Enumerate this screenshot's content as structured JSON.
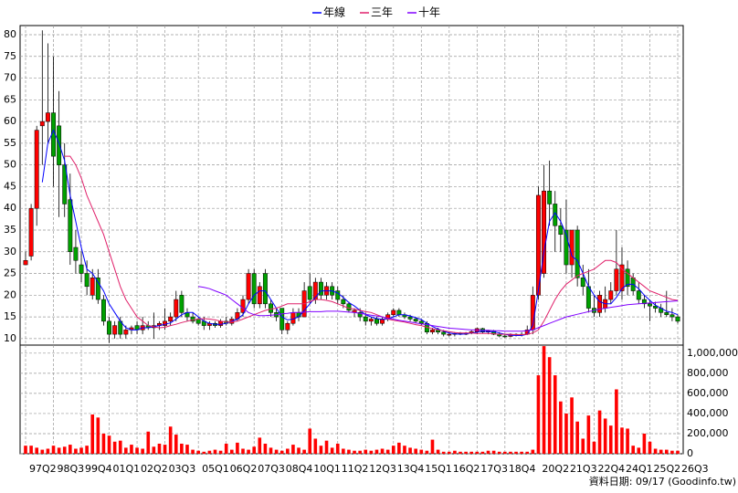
{
  "chart_data": {
    "type": "candlestick",
    "categories": [
      "97Q2",
      null,
      null,
      null,
      null,
      "98Q3",
      null,
      null,
      null,
      null,
      "99Q4",
      null,
      null,
      null,
      null,
      "01Q1",
      null,
      null,
      null,
      null,
      "02Q2",
      null,
      null,
      null,
      null,
      "03Q3",
      null,
      null,
      null,
      null,
      null,
      "05Q1",
      null,
      null,
      null,
      null,
      "06Q2",
      null,
      null,
      null,
      null,
      "07Q3",
      null,
      null,
      null,
      null,
      "08Q4",
      null,
      null,
      null,
      null,
      "10Q1",
      null,
      null,
      null,
      null,
      "11Q2",
      null,
      null,
      null,
      null,
      "12Q3",
      null,
      null,
      null,
      null,
      "13Q4",
      null,
      null,
      null,
      null,
      "15Q1",
      null,
      null,
      null,
      null,
      "16Q2",
      null,
      null,
      null,
      null,
      "17Q3",
      null,
      null,
      null,
      null,
      "18Q4",
      null,
      null,
      null,
      null,
      null,
      "20Q2",
      null,
      null,
      null,
      null,
      "21Q3",
      null,
      null,
      null,
      null,
      "22Q4",
      null,
      null,
      null,
      null,
      "24Q1",
      null,
      null,
      null,
      null,
      "25Q2",
      null,
      null,
      null,
      null,
      "26Q3"
    ],
    "open": [
      27,
      29,
      40,
      59,
      60,
      62,
      59,
      50,
      42,
      31,
      27,
      25,
      20,
      24,
      19,
      14,
      11,
      14,
      11,
      12,
      13,
      12,
      13,
      12.5,
      13,
      13,
      14,
      15,
      20,
      16,
      15,
      14.5,
      14,
      13,
      13.5,
      13,
      14,
      13.5,
      14.5,
      16,
      19,
      25,
      18,
      25,
      18,
      16,
      17,
      12,
      13.5,
      16,
      15,
      22,
      19,
      23,
      20,
      22,
      21,
      19,
      18,
      16,
      16,
      15,
      14,
      14.5,
      13.5,
      14.5,
      15.5,
      16.5,
      15.5,
      15,
      14.5,
      14,
      13.5,
      11.5,
      12,
      11.5,
      11,
      11,
      11.2,
      11,
      11.3,
      11.6,
      12.3,
      11.5,
      11.8,
      11,
      10.6,
      10.5,
      11,
      10.8,
      11,
      12,
      20,
      25,
      44,
      41,
      36,
      35,
      27,
      35,
      24,
      22,
      17,
      16,
      17,
      19,
      21,
      21,
      26,
      24,
      21,
      19,
      18,
      17.5,
      17,
      16,
      15.5,
      15
    ],
    "high": [
      30,
      41,
      59,
      81,
      78,
      75,
      67,
      55,
      48,
      35,
      30,
      28,
      26,
      26,
      20,
      15,
      14,
      15,
      13,
      13,
      14,
      15,
      14,
      16,
      14,
      17,
      16,
      21,
      21,
      17,
      16,
      15,
      15,
      14,
      14,
      14.5,
      15,
      15,
      17,
      20,
      26,
      26,
      23,
      26,
      19,
      17,
      17,
      14,
      17,
      17,
      23,
      25,
      24,
      24,
      23,
      23,
      22,
      20,
      18.5,
      17,
      17,
      16,
      15,
      15,
      15,
      16,
      17,
      17,
      16,
      15.5,
      15,
      14.5,
      14,
      12.5,
      12.5,
      12,
      11.5,
      11.5,
      11.5,
      11.5,
      12,
      12.5,
      12.5,
      12,
      12,
      11.5,
      11,
      11.2,
      11.2,
      11.5,
      13,
      22,
      45,
      50,
      51,
      44,
      40,
      42,
      35,
      36,
      27,
      26,
      20,
      21,
      22,
      23,
      35,
      31,
      28,
      25,
      23,
      20,
      19,
      18.5,
      18,
      21,
      17,
      15.5
    ],
    "low": [
      27,
      28,
      36,
      50,
      55,
      45,
      38,
      38,
      27,
      25,
      23,
      20,
      19,
      18,
      13,
      9,
      10,
      10,
      10,
      11,
      11,
      11,
      12,
      10,
      12,
      12,
      13,
      14,
      15,
      14,
      13.5,
      13,
      12,
      12,
      12.5,
      12.5,
      13,
      13,
      14,
      15,
      18,
      17,
      17,
      17,
      15,
      14,
      11,
      11,
      13,
      14,
      15,
      18,
      18,
      19,
      19,
      19,
      18,
      17,
      16,
      15,
      14,
      13,
      13,
      13,
      13,
      14,
      15,
      15,
      14.5,
      14,
      13.5,
      13,
      11,
      11,
      11,
      10.5,
      10.5,
      10.5,
      10.8,
      10.8,
      11,
      11,
      11.2,
      11,
      10.8,
      10.3,
      10.2,
      10.3,
      10.5,
      10.5,
      10.8,
      11,
      19,
      24,
      36,
      30,
      30,
      25,
      24,
      22,
      20,
      16,
      15,
      15,
      16,
      18,
      20,
      19,
      20,
      20,
      18,
      17,
      14,
      16,
      15,
      15,
      14,
      13.5
    ],
    "close": [
      28,
      40,
      58,
      60,
      62,
      52,
      50,
      41,
      30,
      28,
      25,
      22,
      24,
      19,
      14,
      11,
      13,
      11,
      12,
      12.5,
      12,
      13,
      12.5,
      13,
      13.5,
      14,
      15,
      19,
      16,
      15,
      14,
      13.5,
      13,
      13.5,
      13,
      14,
      13.5,
      14.5,
      16,
      19,
      25,
      18,
      22,
      18,
      16,
      15,
      12,
      13.5,
      16,
      15,
      21,
      19,
      23,
      20,
      22,
      20,
      19,
      18,
      16.5,
      16.5,
      15,
      14,
      14.5,
      13.5,
      14.5,
      15.5,
      16.5,
      15.5,
      15,
      14.5,
      14,
      13.5,
      11.5,
      12,
      11.5,
      11,
      11,
      11.2,
      11,
      11.3,
      11.6,
      12.3,
      11.5,
      11.8,
      11,
      10.6,
      10.5,
      11,
      10.8,
      11,
      12,
      20,
      43,
      44,
      41,
      36,
      34,
      27,
      35,
      24,
      22,
      17,
      16,
      20,
      19,
      21,
      26,
      27,
      22,
      21,
      19,
      18,
      17.5,
      17,
      16,
      15.5,
      15,
      14
    ],
    "up_color": "#ff0000",
    "down_color": "#00a000",
    "ylim": [
      8.5,
      82.1
    ],
    "yticks": [
      10,
      15,
      20,
      25,
      30,
      35,
      40,
      45,
      50,
      55,
      60,
      65,
      70,
      75,
      80
    ],
    "grid": true,
    "series": [
      {
        "name": "年線",
        "color": "#0000ff",
        "values": [
          null,
          null,
          null,
          46,
          55,
          58,
          55,
          51,
          43,
          37,
          31,
          26,
          25,
          23,
          21,
          18,
          16,
          14,
          12.5,
          12,
          12,
          12.5,
          12.5,
          12.8,
          13,
          13.3,
          13.6,
          14.5,
          15.5,
          16,
          16,
          15,
          14,
          13.5,
          13.3,
          13.3,
          13.5,
          14,
          14.5,
          15.5,
          18,
          20,
          21,
          21,
          19,
          17,
          15,
          14.3,
          14.5,
          15,
          16.5,
          18,
          19.5,
          21,
          21,
          21,
          20.5,
          19.5,
          18.3,
          17.5,
          16.5,
          15.5,
          15,
          14.6,
          14.4,
          14.5,
          15,
          15.5,
          15.5,
          15.2,
          14.8,
          14.4,
          13.5,
          12.8,
          12.2,
          11.7,
          11.3,
          11.1,
          11,
          11.1,
          11.3,
          11.5,
          11.7,
          11.6,
          11.6,
          11.3,
          11,
          10.8,
          10.7,
          10.7,
          11,
          13,
          21,
          30,
          37,
          39,
          37,
          34,
          29,
          28,
          25,
          22,
          20,
          18.5,
          18,
          18,
          19.5,
          21.5,
          22.5,
          22.5,
          21.5,
          20,
          18.8,
          17.7,
          17,
          16.3,
          16,
          15.5
        ]
      },
      {
        "name": "三年",
        "color": "#e0206a",
        "values": [
          null,
          null,
          null,
          null,
          null,
          null,
          null,
          52,
          52,
          50,
          47,
          43,
          40,
          37,
          34,
          30,
          26,
          22,
          19,
          17,
          15,
          14,
          13,
          12.7,
          12.5,
          12.6,
          13,
          13.3,
          13.7,
          14,
          14.3,
          14.5,
          14.6,
          14.5,
          14.3,
          14,
          13.8,
          13.8,
          14,
          14.5,
          15,
          15.5,
          16,
          16.5,
          16.8,
          17,
          17.5,
          18,
          18,
          18,
          18,
          18.5,
          19,
          19,
          18.8,
          18.5,
          18,
          17.5,
          17,
          16.8,
          16.5,
          16.2,
          16,
          15.5,
          15,
          14.5,
          14.2,
          14,
          13.8,
          13.5,
          13.2,
          13,
          12.6,
          12.3,
          12,
          11.8,
          11.6,
          11.4,
          11.3,
          11.3,
          11.3,
          11.2,
          11.2,
          11.2,
          11.1,
          11,
          11,
          11,
          10.9,
          10.9,
          11,
          11.3,
          12,
          14,
          16.5,
          19,
          21,
          22.5,
          23.5,
          24.5,
          25,
          25.5,
          26,
          27,
          28,
          28,
          27.5,
          26,
          25,
          24,
          23,
          22,
          21,
          20.5,
          20,
          19.5,
          19,
          18.8
        ]
      },
      {
        "name": "十年",
        "color": "#8000ff",
        "values": [
          null,
          null,
          null,
          null,
          null,
          null,
          null,
          null,
          null,
          null,
          null,
          null,
          null,
          null,
          null,
          null,
          null,
          null,
          null,
          null,
          null,
          null,
          null,
          null,
          null,
          null,
          null,
          null,
          null,
          null,
          null,
          22,
          21.8,
          21.5,
          21,
          20.5,
          20,
          19,
          18,
          17,
          16,
          15.5,
          15.3,
          15.3,
          15.4,
          15.5,
          15.7,
          15.8,
          16,
          16,
          16.1,
          16.2,
          16.2,
          16.2,
          16.3,
          16.3,
          16.3,
          16.2,
          16.1,
          16,
          15.8,
          15.6,
          15.4,
          15.2,
          15,
          14.7,
          14.5,
          14.2,
          14,
          13.8,
          13.6,
          13.4,
          13.2,
          13,
          12.8,
          12.6,
          12.4,
          12.3,
          12.2,
          12.1,
          12,
          12,
          11.9,
          11.9,
          11.8,
          11.8,
          11.7,
          11.7,
          11.7,
          11.7,
          11.8,
          12,
          12.5,
          13,
          13.5,
          14,
          14.5,
          15,
          15.3,
          15.6,
          15.9,
          16.2,
          16.5,
          16.8,
          17,
          17.2,
          17.4,
          17.6,
          17.8,
          17.9,
          18,
          18.1,
          18.2,
          18.3,
          18.4,
          18.5,
          18.6,
          18.7
        ]
      }
    ],
    "volume": {
      "color": "#ff0000",
      "ylim": [
        0,
        1080000
      ],
      "yticks": [
        0,
        {
          "value": 200000,
          "label": "200,000"
        },
        {
          "value": 400000,
          "label": "400,000"
        },
        {
          "value": 600000,
          "label": "600,000"
        },
        {
          "value": 800000,
          "label": "800,000"
        },
        {
          "value": 1000000,
          "label": "1,000,000"
        }
      ],
      "values": [
        80000,
        80000,
        60000,
        40000,
        50000,
        80000,
        60000,
        70000,
        90000,
        50000,
        60000,
        80000,
        390000,
        360000,
        200000,
        180000,
        120000,
        130000,
        60000,
        90000,
        60000,
        50000,
        220000,
        70000,
        100000,
        90000,
        270000,
        190000,
        100000,
        90000,
        40000,
        30000,
        20000,
        30000,
        40000,
        30000,
        100000,
        40000,
        110000,
        50000,
        40000,
        70000,
        160000,
        100000,
        60000,
        40000,
        30000,
        50000,
        90000,
        60000,
        40000,
        250000,
        150000,
        80000,
        130000,
        60000,
        100000,
        50000,
        40000,
        30000,
        30000,
        40000,
        30000,
        40000,
        50000,
        40000,
        80000,
        110000,
        80000,
        60000,
        50000,
        40000,
        30000,
        140000,
        40000,
        20000,
        20000,
        30000,
        20000,
        20000,
        20000,
        20000,
        20000,
        30000,
        30000,
        20000,
        20000,
        20000,
        20000,
        20000,
        20000,
        40000,
        780000,
        1070000,
        960000,
        780000,
        520000,
        400000,
        560000,
        320000,
        150000,
        380000,
        120000,
        430000,
        350000,
        280000,
        640000,
        260000,
        250000,
        80000,
        60000,
        200000,
        120000,
        50000,
        40000,
        40000,
        30000,
        30000
      ]
    },
    "legend": "top",
    "footer": "資料日期: 09/17 (Goodinfo.tw)"
  }
}
